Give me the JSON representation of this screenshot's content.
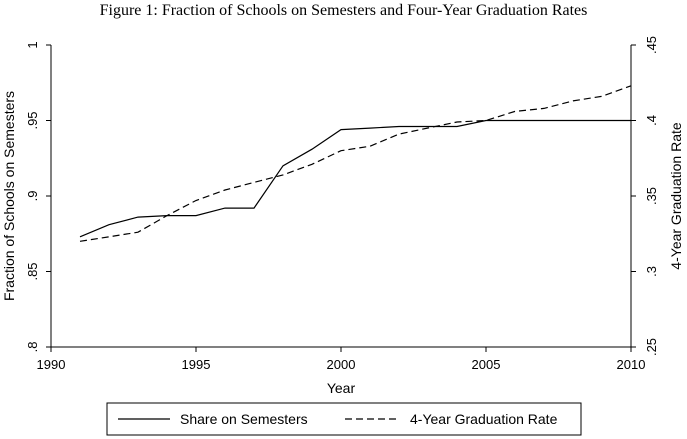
{
  "figure_title": "Figure 1: Fraction of Schools on Semesters and Four-Year Graduation Rates",
  "chart_data": {
    "type": "line",
    "title": "Figure 1: Fraction of Schools on Semesters and Four-Year Graduation Rates",
    "xlabel": "Year",
    "ylabel_left": "Fraction of Schools on Semesters",
    "ylabel_right": "4-Year Graduation Rate",
    "xlim": [
      1990,
      2010
    ],
    "ylim_left": [
      0.8,
      1.0
    ],
    "ylim_right": [
      0.25,
      0.45
    ],
    "x_ticks": [
      1990,
      1995,
      2000,
      2005,
      2010
    ],
    "x_tick_labels": [
      "1990",
      "1995",
      "2000",
      "2005",
      "2010"
    ],
    "y_left_ticks": [
      0.8,
      0.85,
      0.9,
      0.95,
      1.0
    ],
    "y_left_tick_labels": [
      ".8",
      ".85",
      ".9",
      ".95",
      "1"
    ],
    "y_right_ticks": [
      0.25,
      0.3,
      0.35,
      0.4,
      0.45
    ],
    "y_right_tick_labels": [
      ".25",
      ".3",
      ".35",
      ".4",
      ".45"
    ],
    "grid": false,
    "legend_position": "bottom",
    "series": [
      {
        "name": "Share on Semesters",
        "axis": "left",
        "style": "solid",
        "color": "#000000",
        "x": [
          1991,
          1992,
          1993,
          1994,
          1995,
          1996,
          1997,
          1998,
          1999,
          2000,
          2001,
          2002,
          2003,
          2004,
          2005,
          2006,
          2007,
          2008,
          2009,
          2010
        ],
        "values": [
          0.873,
          0.881,
          0.886,
          0.887,
          0.887,
          0.892,
          0.892,
          0.92,
          0.931,
          0.944,
          0.945,
          0.946,
          0.946,
          0.946,
          0.95,
          0.95,
          0.95,
          0.95,
          0.95,
          0.95
        ]
      },
      {
        "name": "4-Year Graduation Rate",
        "axis": "right",
        "style": "dashed",
        "color": "#000000",
        "x": [
          1991,
          1992,
          1993,
          1994,
          1995,
          1996,
          1997,
          1998,
          1999,
          2000,
          2001,
          2002,
          2003,
          2004,
          2005,
          2006,
          2007,
          2008,
          2009,
          2010
        ],
        "values": [
          0.32,
          0.323,
          0.326,
          0.337,
          0.347,
          0.354,
          0.359,
          0.364,
          0.371,
          0.38,
          0.383,
          0.391,
          0.395,
          0.399,
          0.4,
          0.406,
          0.408,
          0.413,
          0.416,
          0.423
        ]
      }
    ]
  }
}
